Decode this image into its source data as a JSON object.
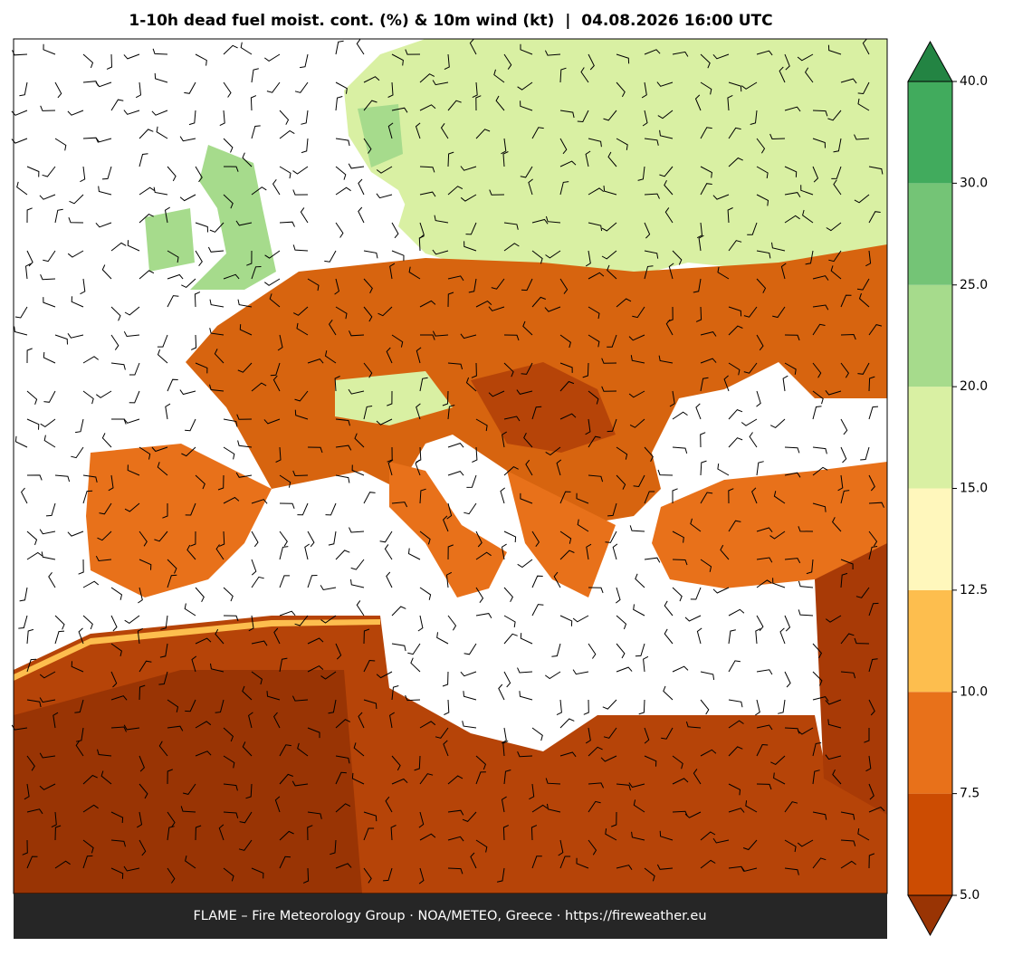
{
  "title": "1-10h dead fuel moist. cont. (%) & 10m wind (kt)  |  04.08.2026 16:00 UTC",
  "footer": "FLAME – Fire Meteorology Group · NOA/METEO, Greece · https://fireweather.eu",
  "colorbar": {
    "ticks": [
      {
        "value": 5,
        "label": "5.0"
      },
      {
        "value": 7.5,
        "label": "7.5"
      },
      {
        "value": 10,
        "label": "10.0"
      },
      {
        "value": 12.5,
        "label": "12.5"
      },
      {
        "value": 15,
        "label": "15.0"
      },
      {
        "value": 20,
        "label": "20.0"
      },
      {
        "value": 25,
        "label": "25.0"
      },
      {
        "value": 30,
        "label": "30.0"
      },
      {
        "value": 40,
        "label": "40.0"
      }
    ],
    "colors": [
      "#cc4c02",
      "#e8711a",
      "#fdbe4e",
      "#fff7bc",
      "#d9f0a3",
      "#a6db8c",
      "#74c476",
      "#41ab5d"
    ],
    "under_color": "#993404",
    "over_color": "#238443"
  }
}
